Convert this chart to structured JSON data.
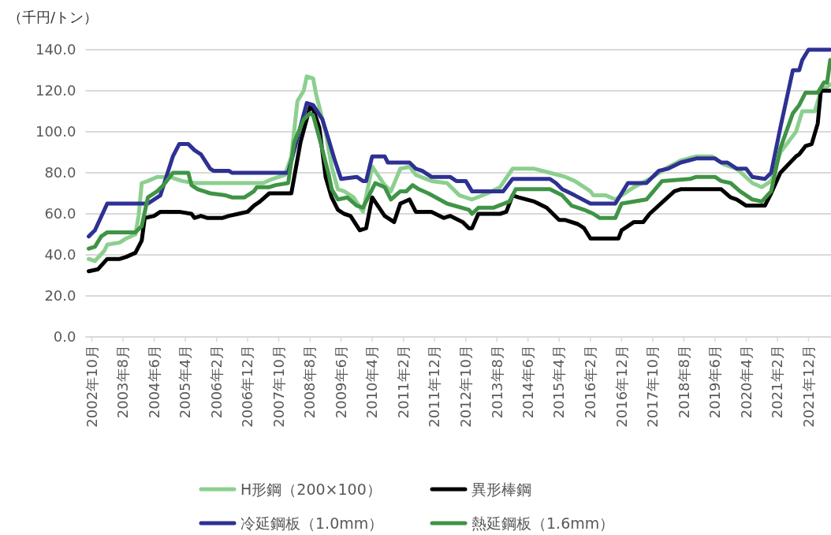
{
  "chart_data": {
    "type": "line",
    "ylabel": "（千円/トン）",
    "xlim": [
      "2002-08",
      "2022-07"
    ],
    "ylim": [
      0,
      140
    ],
    "yticks": [
      {
        "value": 0,
        "label": "0.0"
      },
      {
        "value": 20,
        "label": "20.0"
      },
      {
        "value": 40,
        "label": "40.0"
      },
      {
        "value": 60,
        "label": "60.0"
      },
      {
        "value": 80,
        "label": "80.0"
      },
      {
        "value": 100,
        "label": "100.0"
      },
      {
        "value": 120,
        "label": "120.0"
      },
      {
        "value": 140,
        "label": "140.0"
      }
    ],
    "xticks": [
      {
        "value": "2002-10",
        "label": "2002年10月"
      },
      {
        "value": "2003-08",
        "label": "2003年8月"
      },
      {
        "value": "2004-06",
        "label": "2004年6月"
      },
      {
        "value": "2005-04",
        "label": "2005年4月"
      },
      {
        "value": "2006-02",
        "label": "2006年2月"
      },
      {
        "value": "2006-12",
        "label": "2006年12月"
      },
      {
        "value": "2007-10",
        "label": "2007年10月"
      },
      {
        "value": "2008-08",
        "label": "2008年8月"
      },
      {
        "value": "2009-06",
        "label": "2009年6月"
      },
      {
        "value": "2010-04",
        "label": "2010年4月"
      },
      {
        "value": "2011-02",
        "label": "2011年2月"
      },
      {
        "value": "2011-12",
        "label": "2011年12月"
      },
      {
        "value": "2012-10",
        "label": "2012年10月"
      },
      {
        "value": "2013-08",
        "label": "2013年8月"
      },
      {
        "value": "2014-06",
        "label": "2014年6月"
      },
      {
        "value": "2015-04",
        "label": "2015年4月"
      },
      {
        "value": "2016-02",
        "label": "2016年2月"
      },
      {
        "value": "2016-12",
        "label": "2016年12月"
      },
      {
        "value": "2017-10",
        "label": "2017年10月"
      },
      {
        "value": "2018-08",
        "label": "2018年8月"
      },
      {
        "value": "2019-06",
        "label": "2019年6月"
      },
      {
        "value": "2020-04",
        "label": "2020年4月"
      },
      {
        "value": "2021-02",
        "label": "2021年2月"
      },
      {
        "value": "2021-12",
        "label": "2021年12月"
      }
    ],
    "grid": "y",
    "legend": "bottom",
    "marker": "none",
    "line_style": "solid",
    "series": [
      {
        "name": "H形鋼（200×100）",
        "color": "#8ccf8f",
        "x": [
          "2002-09",
          "2002-11",
          "2003-02",
          "2003-03",
          "2003-07",
          "2003-09",
          "2003-12",
          "2004-01",
          "2004-02",
          "2004-04",
          "2004-07",
          "2004-11",
          "2005-01",
          "2005-03",
          "2005-07",
          "2007-05",
          "2007-08",
          "2007-12",
          "2008-02",
          "2008-04",
          "2008-06",
          "2008-07",
          "2008-09",
          "2008-10",
          "2009-01",
          "2009-03",
          "2009-05",
          "2009-07",
          "2009-10",
          "2010-01",
          "2010-04",
          "2010-08",
          "2010-10",
          "2011-01",
          "2011-04",
          "2011-06",
          "2011-11",
          "2012-04",
          "2012-08",
          "2012-12",
          "2013-05",
          "2013-09",
          "2014-01",
          "2014-08",
          "2015-01",
          "2015-06",
          "2015-09",
          "2016-02",
          "2016-03",
          "2016-07",
          "2016-10",
          "2016-12",
          "2017-04",
          "2017-09",
          "2018-02",
          "2018-07",
          "2018-12",
          "2019-05",
          "2019-09",
          "2020-01",
          "2020-06",
          "2020-09",
          "2020-12",
          "2021-03",
          "2021-08",
          "2021-10",
          "2022-02",
          "2022-04",
          "2022-07"
        ],
        "values": [
          38,
          37,
          42,
          45,
          46,
          48,
          50,
          59,
          75,
          76,
          78,
          78,
          77,
          76,
          75,
          75,
          77,
          79,
          88,
          115,
          120,
          127,
          126,
          118,
          100,
          83,
          72,
          71,
          68,
          61,
          83,
          74,
          71,
          82,
          83,
          79,
          76,
          75,
          69,
          67,
          70,
          73,
          82,
          82,
          80,
          78,
          76,
          71,
          69,
          69,
          67,
          69,
          73,
          77,
          82,
          86,
          88,
          88,
          84,
          82,
          75,
          73,
          76,
          90,
          100,
          110,
          110,
          120,
          123
        ]
      },
      {
        "name": "異形棒鋼",
        "color": "#000000",
        "x": [
          "2002-09",
          "2002-12",
          "2003-03",
          "2003-07",
          "2003-09",
          "2003-12",
          "2004-02",
          "2004-03",
          "2004-06",
          "2004-08",
          "2005-02",
          "2005-06",
          "2005-07",
          "2005-09",
          "2005-11",
          "2006-04",
          "2006-06",
          "2006-09",
          "2006-12",
          "2007-02",
          "2007-04",
          "2007-07",
          "2008-02",
          "2008-05",
          "2008-08",
          "2008-09",
          "2008-11",
          "2009-01",
          "2009-03",
          "2009-05",
          "2009-07",
          "2009-09",
          "2009-12",
          "2010-02",
          "2010-04",
          "2010-08",
          "2010-11",
          "2011-01",
          "2011-04",
          "2011-06",
          "2011-11",
          "2012-03",
          "2012-05",
          "2012-09",
          "2012-11",
          "2012-12",
          "2013-02",
          "2013-09",
          "2013-11",
          "2014-01",
          "2014-03",
          "2014-08",
          "2014-12",
          "2015-04",
          "2015-06",
          "2015-10",
          "2015-12",
          "2016-02",
          "2016-11",
          "2016-12",
          "2017-04",
          "2017-07",
          "2017-09",
          "2018-02",
          "2018-05",
          "2018-07",
          "2019-08",
          "2019-11",
          "2020-01",
          "2020-04",
          "2020-10",
          "2020-12",
          "2021-03",
          "2021-08",
          "2021-09",
          "2021-11",
          "2022-01",
          "2022-03",
          "2022-04",
          "2022-07"
        ],
        "values": [
          32,
          33,
          38,
          38,
          39,
          41,
          47,
          58,
          59,
          61,
          61,
          60,
          58,
          59,
          58,
          58,
          59,
          60,
          61,
          64,
          66,
          70,
          70,
          95,
          112,
          111,
          102,
          78,
          68,
          62,
          60,
          59,
          52,
          53,
          68,
          59,
          56,
          65,
          67,
          61,
          61,
          58,
          59,
          56,
          53,
          53,
          60,
          60,
          61,
          69,
          68,
          66,
          63,
          57,
          57,
          55,
          53,
          48,
          48,
          52,
          56,
          56,
          60,
          67,
          71,
          72,
          72,
          68,
          67,
          64,
          64,
          70,
          80,
          88,
          89,
          93,
          94,
          104,
          120,
          120
        ]
      },
      {
        "name": "冷延鋼板（1.0mm）",
        "color": "#2e3192",
        "x": [
          "2002-09",
          "2002-11",
          "2003-03",
          "2004-04",
          "2004-08",
          "2004-12",
          "2005-02",
          "2005-05",
          "2005-07",
          "2005-09",
          "2005-12",
          "2006-01",
          "2006-06",
          "2006-07",
          "2008-01",
          "2008-07",
          "2008-09",
          "2008-12",
          "2009-02",
          "2009-04",
          "2009-06",
          "2009-11",
          "2010-01",
          "2010-02",
          "2010-04",
          "2010-08",
          "2010-09",
          "2011-04",
          "2011-06",
          "2011-08",
          "2011-11",
          "2012-05",
          "2012-07",
          "2012-10",
          "2012-12",
          "2013-10",
          "2014-01",
          "2015-01",
          "2015-03",
          "2015-05",
          "2015-09",
          "2016-02",
          "2016-10",
          "2017-02",
          "2017-08",
          "2017-12",
          "2018-03",
          "2018-07",
          "2018-12",
          "2019-06",
          "2019-08",
          "2019-10",
          "2020-01",
          "2020-04",
          "2020-06",
          "2020-10",
          "2020-12",
          "2021-03",
          "2021-07",
          "2021-09",
          "2021-10",
          "2021-12",
          "2022-07"
        ],
        "values": [
          49,
          52,
          65,
          65,
          69,
          88,
          94,
          94,
          91,
          89,
          82,
          81,
          81,
          80,
          80,
          114,
          113,
          106,
          96,
          86,
          77,
          78,
          76,
          76,
          88,
          88,
          85,
          85,
          82,
          81,
          78,
          78,
          76,
          76,
          71,
          71,
          77,
          77,
          75,
          72,
          69,
          65,
          65,
          75,
          75,
          81,
          82,
          85,
          87,
          87,
          85,
          85,
          82,
          82,
          78,
          77,
          80,
          102,
          130,
          130,
          135,
          140,
          140
        ]
      },
      {
        "name": "熱延鋼板（1.6mm）",
        "color": "#3f9445",
        "x": [
          "2002-09",
          "2002-11",
          "2003-01",
          "2003-03",
          "2003-12",
          "2004-02",
          "2004-04",
          "2004-07",
          "2004-09",
          "2004-12",
          "2005-05",
          "2005-06",
          "2005-08",
          "2005-10",
          "2005-12",
          "2006-05",
          "2006-07",
          "2006-11",
          "2007-02",
          "2007-03",
          "2007-07",
          "2007-09",
          "2008-01",
          "2008-03",
          "2008-06",
          "2008-08",
          "2008-09",
          "2008-11",
          "2009-02",
          "2009-03",
          "2009-05",
          "2009-08",
          "2009-11",
          "2010-01",
          "2010-05",
          "2010-08",
          "2010-10",
          "2011-01",
          "2011-03",
          "2011-05",
          "2011-07",
          "2011-10",
          "2012-04",
          "2012-11",
          "2012-12",
          "2013-02",
          "2013-07",
          "2013-12",
          "2014-02",
          "2015-01",
          "2015-05",
          "2015-08",
          "2015-12",
          "2016-03",
          "2016-05",
          "2016-10",
          "2016-12",
          "2017-08",
          "2018-01",
          "2018-10",
          "2018-12",
          "2019-06",
          "2019-08",
          "2019-11",
          "2020-02",
          "2020-06",
          "2020-09",
          "2020-12",
          "2021-03",
          "2021-07",
          "2021-09",
          "2021-11",
          "2022-03",
          "2022-05",
          "2022-06",
          "2022-07"
        ],
        "values": [
          43,
          44,
          49,
          51,
          51,
          54,
          68,
          71,
          74,
          80,
          80,
          74,
          72,
          71,
          70,
          69,
          68,
          68,
          71,
          73,
          73,
          74,
          75,
          95,
          106,
          109,
          108,
          97,
          79,
          72,
          67,
          68,
          64,
          63,
          75,
          73,
          67,
          71,
          71,
          74,
          72,
          70,
          65,
          62,
          60,
          63,
          63,
          66,
          72,
          72,
          69,
          64,
          62,
          60,
          58,
          58,
          65,
          67,
          76,
          77,
          78,
          78,
          76,
          75,
          71,
          67,
          66,
          71,
          92,
          109,
          113,
          119,
          119,
          124,
          124,
          135
        ]
      }
    ]
  }
}
